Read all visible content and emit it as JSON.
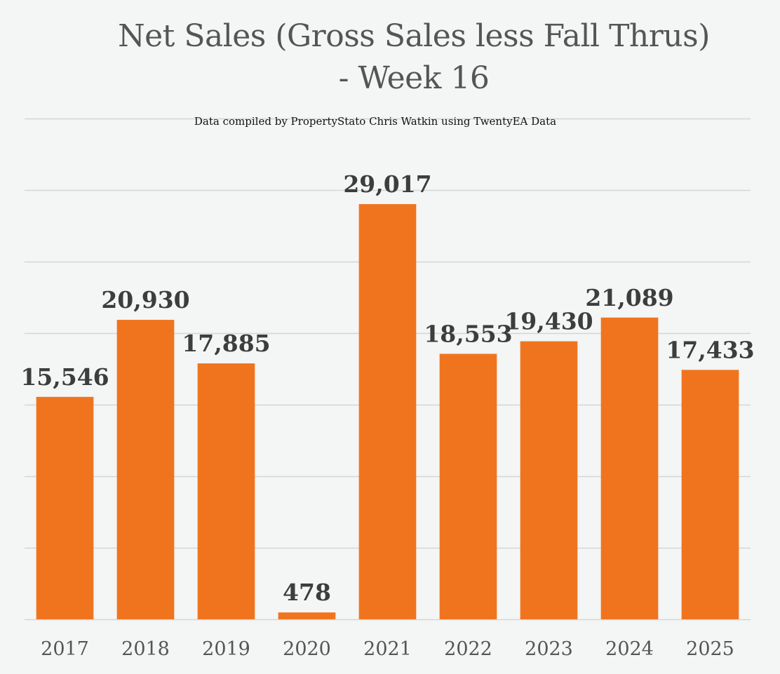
{
  "chart_data": {
    "type": "bar",
    "title": "Net Sales (Gross Sales less Fall Thrus) - Week 16",
    "title_lines": [
      "Net Sales (Gross Sales less Fall Thrus)",
      "- Week 16"
    ],
    "subtitle": "Data compiled by PropertyStato Chris Watkin using TwentyEA Data",
    "xlabel": "",
    "ylabel": "",
    "categories": [
      "2017",
      "2018",
      "2019",
      "2020",
      "2021",
      "2022",
      "2023",
      "2024",
      "2025"
    ],
    "values": [
      15546,
      20930,
      17885,
      478,
      29017,
      18553,
      19430,
      21089,
      17433
    ],
    "data_labels": [
      "15,546",
      "20,930",
      "17,885",
      "478",
      "29,017",
      "18,553",
      "19,430",
      "21,089",
      "17,433"
    ],
    "ylim": [
      0,
      35000
    ],
    "ytick_step": 5000,
    "grid": true,
    "legend": "none",
    "colors": {
      "bar": "#f0741e",
      "label": "#3d3d3d",
      "axis_text": "#555555",
      "grid": "#d4d6d6",
      "background": "#f4f5f5"
    }
  }
}
